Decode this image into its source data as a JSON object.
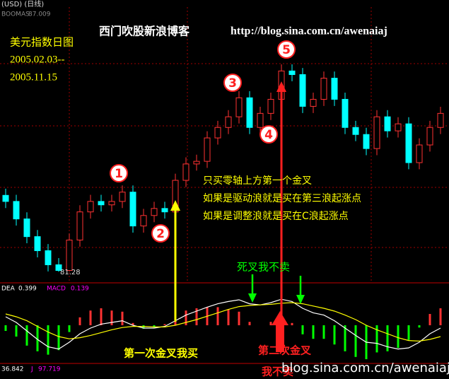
{
  "chart_data": {
    "type": "candlestick",
    "header": "(USD) (日线)",
    "indicator_name": "BOOMAS",
    "indicator_value": 87.009,
    "title": "西门吹股新浪博客",
    "url": "http://blog.sina.com.cn/awenaiaj",
    "subtitle_lines": [
      "美元指数日图",
      "2005.02.03--",
      "2005.11.15"
    ],
    "wave_labels": [
      "1",
      "2",
      "3",
      "4",
      "5"
    ],
    "ylim": [
      80.7,
      95.2
    ],
    "open": [
      85.3,
      84.98,
      84.06,
      83.13,
      82.39,
      81.65,
      81.35,
      82.95,
      84.43,
      84.98,
      84.8,
      84.98,
      85.47,
      83.69,
      84.24,
      84.61,
      84.43,
      86.09,
      86.95,
      87.09,
      88.32,
      88.87,
      89.43,
      90.43,
      88.87,
      89.61,
      90.35,
      91.84,
      91.65,
      89.98,
      90.35,
      91.46,
      90.35,
      88.87,
      88.5,
      87.76,
      89.43,
      88.69,
      89.06,
      87.02,
      87.95,
      88.87
    ],
    "high": [
      85.65,
      85.33,
      84.41,
      83.48,
      82.74,
      82.0,
      83.3,
      84.78,
      85.33,
      85.33,
      85.33,
      85.82,
      85.82,
      84.59,
      84.96,
      84.96,
      86.44,
      87.3,
      87.44,
      88.67,
      89.22,
      89.78,
      90.78,
      90.78,
      89.96,
      90.7,
      92.19,
      92.19,
      92.0,
      90.7,
      91.81,
      91.81,
      90.7,
      89.22,
      88.85,
      89.78,
      89.78,
      89.41,
      89.41,
      88.3,
      89.22,
      89.96
    ],
    "low": [
      84.63,
      83.71,
      82.78,
      82.04,
      81.3,
      81.28,
      81.3,
      82.6,
      84.08,
      84.45,
      84.45,
      84.63,
      83.34,
      83.34,
      83.89,
      84.08,
      84.08,
      85.74,
      86.6,
      86.74,
      87.97,
      88.52,
      89.08,
      88.52,
      88.52,
      89.26,
      90.0,
      91.3,
      89.63,
      89.63,
      90.0,
      90.0,
      88.52,
      88.15,
      87.41,
      87.41,
      88.34,
      88.34,
      86.67,
      86.67,
      87.6,
      88.52
    ],
    "close": [
      84.98,
      84.06,
      83.13,
      82.39,
      81.65,
      81.35,
      82.95,
      84.43,
      84.98,
      84.8,
      84.98,
      85.47,
      83.69,
      84.24,
      84.61,
      84.43,
      86.09,
      86.95,
      87.09,
      88.32,
      88.87,
      89.43,
      90.43,
      88.87,
      89.61,
      90.35,
      91.84,
      91.65,
      89.98,
      90.35,
      91.46,
      90.35,
      88.87,
      88.5,
      87.76,
      89.43,
      88.69,
      89.06,
      87.02,
      87.95,
      88.87,
      89.61
    ],
    "up_color": "#ff3232",
    "down_color": "#00ffff",
    "notes": [
      "只买零轴上方第一个金叉",
      "如果是驱动浪就是买在第三浪起涨点",
      "如果是调整浪就是买在C浪起涨点"
    ],
    "dead_cross_note": "死叉我不卖",
    "first_cross_note": "第一次金叉我买",
    "second_cross_note": [
      "第二次金叉",
      "我不卖"
    ],
    "watermark": "blog.sina.com.cn/awenaiaj",
    "macd_panel": {
      "dea_name": "DEA",
      "dea_value": 0.399,
      "macd_name": "MACD",
      "macd_value": 0.139,
      "ylim": [
        -0.65,
        0.6
      ],
      "dif": [
        0.15,
        0.05,
        -0.1,
        -0.25,
        -0.38,
        -0.42,
        -0.3,
        -0.15,
        -0.05,
        0.02,
        0.05,
        0.08,
        0.0,
        -0.05,
        -0.05,
        -0.02,
        0.08,
        0.18,
        0.25,
        0.32,
        0.38,
        0.42,
        0.45,
        0.38,
        0.36,
        0.4,
        0.46,
        0.42,
        0.3,
        0.22,
        0.18,
        0.08,
        -0.05,
        -0.18,
        -0.3,
        -0.32,
        -0.38,
        -0.42,
        -0.4,
        -0.3,
        -0.15,
        -0.05
      ],
      "dea": [
        0.2,
        0.15,
        0.08,
        -0.02,
        -0.12,
        -0.2,
        -0.24,
        -0.22,
        -0.18,
        -0.13,
        -0.08,
        -0.04,
        -0.02,
        -0.02,
        -0.03,
        -0.03,
        0.0,
        0.05,
        0.1,
        0.16,
        0.22,
        0.28,
        0.33,
        0.35,
        0.36,
        0.37,
        0.39,
        0.4,
        0.38,
        0.34,
        0.3,
        0.25,
        0.18,
        0.1,
        0.0,
        -0.08,
        -0.15,
        -0.22,
        -0.27,
        -0.28,
        -0.25,
        -0.2
      ],
      "macd": [
        -0.1,
        -0.2,
        -0.36,
        -0.46,
        -0.52,
        -0.44,
        -0.12,
        0.14,
        0.26,
        0.3,
        0.26,
        0.24,
        0.04,
        -0.06,
        -0.04,
        0.02,
        0.16,
        0.26,
        0.3,
        0.32,
        0.32,
        0.28,
        0.24,
        0.06,
        0,
        0.06,
        0.14,
        0.04,
        -0.16,
        -0.24,
        -0.24,
        -0.34,
        -0.46,
        -0.56,
        -0.6,
        -0.48,
        -0.46,
        -0.4,
        -0.26,
        -0.04,
        0.2,
        0.3
      ]
    },
    "kdj_value": 36.842,
    "j_name": "J",
    "j_value": 97.719
  }
}
